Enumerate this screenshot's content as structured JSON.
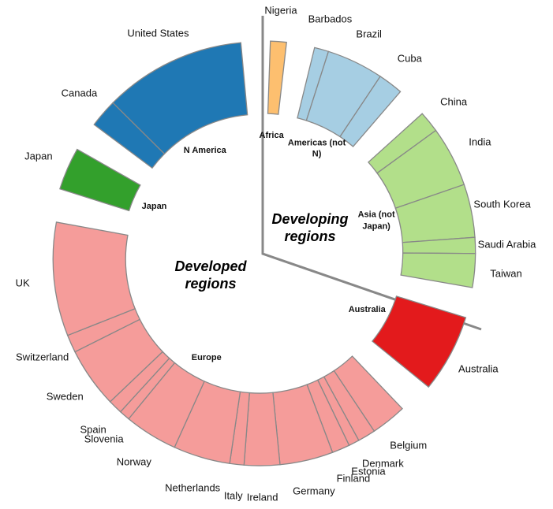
{
  "chart_data": {
    "type": "donut",
    "annotations": [
      "Developed regions",
      "Developing regions"
    ],
    "series": [
      {
        "name": "Africa",
        "color": "#fdbf6f",
        "categories": [
          "Nigeria"
        ],
        "values": [
          4.5
        ]
      },
      {
        "name": "Americas (not N)",
        "color": "#a6cee3",
        "categories": [
          "Barbados",
          "Brazil",
          "Cuba"
        ],
        "values": [
          4,
          16,
          7
        ]
      },
      {
        "name": "Asia (not Japan)",
        "color": "#b2df8a",
        "categories": [
          "China",
          "India",
          "South Korea",
          "Saudi Arabia",
          "Taiwan"
        ],
        "values": [
          6,
          17,
          15,
          4.5,
          9.5
        ]
      },
      {
        "name": "Australia",
        "color": "#e31a1c",
        "categories": [
          "Australia"
        ],
        "values": [
          22
        ]
      },
      {
        "name": "Europe",
        "color": "#f59c9a",
        "categories": [
          "Belgium",
          "Denmark",
          "Estonia",
          "Finland",
          "Germany",
          "Ireland",
          "Italy",
          "Netherlands",
          "Norway",
          "Slovenia",
          "Spain",
          "Sweden",
          "Switzerland",
          "UK"
        ],
        "values": [
          10,
          5,
          3,
          5,
          15,
          10,
          4,
          16,
          15,
          3,
          4,
          17,
          5,
          32
        ]
      },
      {
        "name": "Japan",
        "color": "#33a02c",
        "categories": [
          "Japan"
        ],
        "values": [
          12
        ]
      },
      {
        "name": "N America",
        "color": "#1f78b4",
        "categories": [
          "Canada",
          "United States"
        ],
        "values": [
          8,
          40
        ]
      }
    ]
  }
}
